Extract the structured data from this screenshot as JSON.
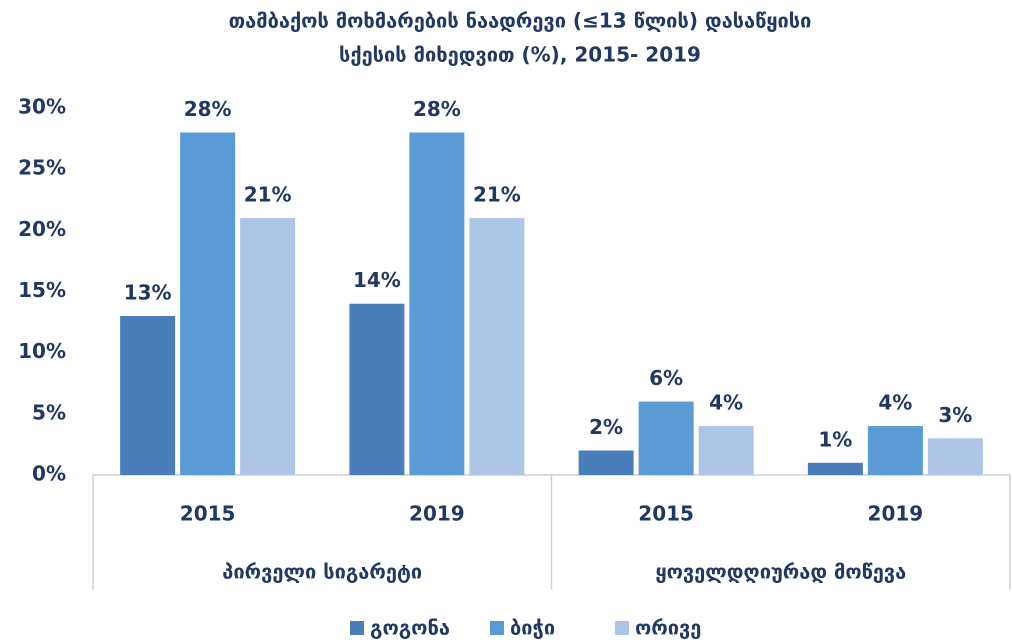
{
  "chart_data": {
    "type": "bar",
    "title": [
      "თამბაქოს მოხმარების ნაადრევი (≤13 წლის) დასაწყისი",
      "სქესის მიხედვით (%), 2015- 2019"
    ],
    "groups": [
      "პირველი სიგარეტი",
      "ყოველდღიურად მოწევა"
    ],
    "categories": [
      "2015",
      "2019",
      "2015",
      "2019"
    ],
    "series": [
      {
        "name": "გოგონა",
        "color": "#4a7ebb",
        "values": [
          13,
          14,
          2,
          1
        ],
        "value_labels": [
          "13%",
          "14%",
          "2%",
          "1%"
        ]
      },
      {
        "name": "ბიჭი",
        "color": "#5b9bd5",
        "values": [
          28,
          28,
          6,
          4
        ],
        "value_labels": [
          "28%",
          "28%",
          "6%",
          "4%"
        ]
      },
      {
        "name": "ორივე",
        "color": "#adc5e7",
        "values": [
          21,
          21,
          4,
          3
        ],
        "value_labels": [
          "21%",
          "21%",
          "4%",
          "3%"
        ]
      }
    ],
    "ylim": [
      0,
      30
    ],
    "yticks": [
      {
        "value": 0,
        "label": "0%"
      },
      {
        "value": 5,
        "label": "5%"
      },
      {
        "value": 10,
        "label": "10%"
      },
      {
        "value": 15,
        "label": "15%"
      },
      {
        "value": 20,
        "label": "20%"
      },
      {
        "value": 25,
        "label": "25%"
      },
      {
        "value": 30,
        "label": "30%"
      }
    ],
    "grid": false,
    "legend": "bottom"
  }
}
